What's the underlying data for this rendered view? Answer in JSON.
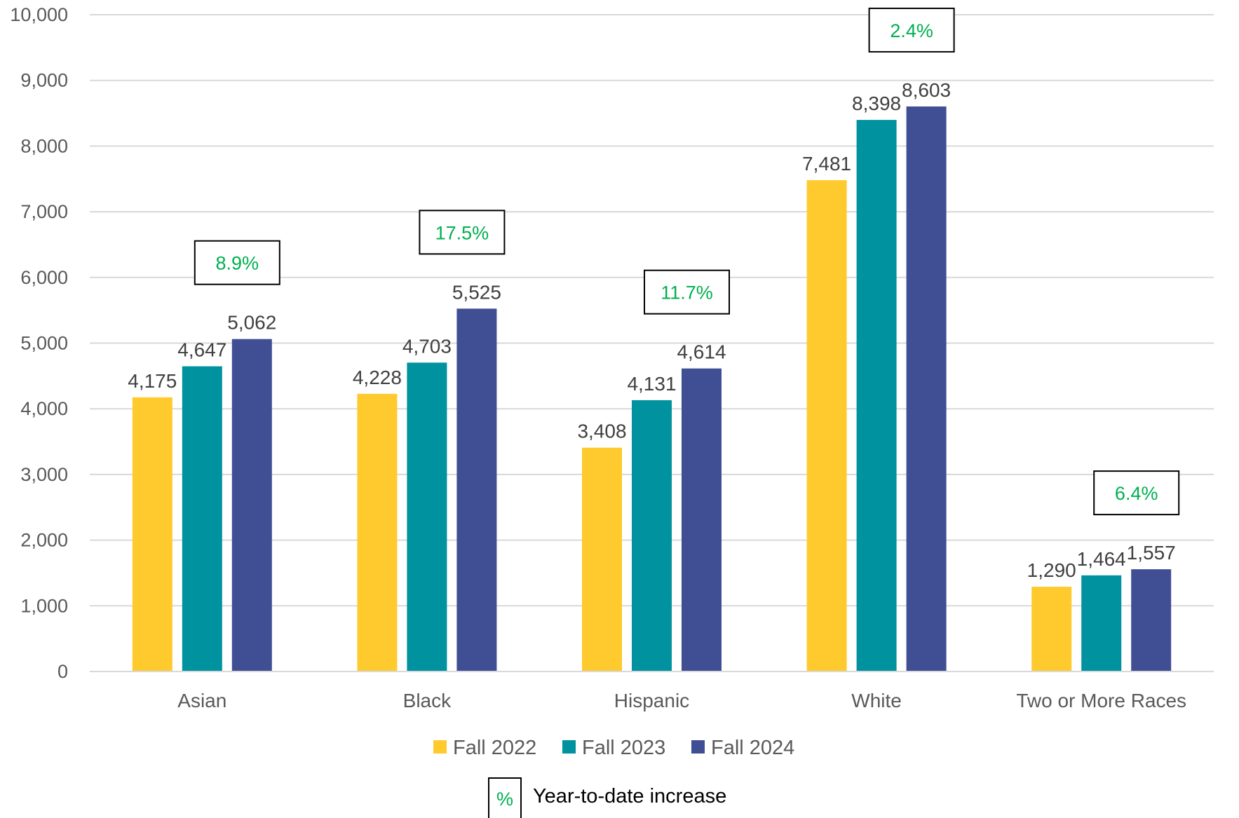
{
  "chart_data": {
    "type": "bar",
    "title": "",
    "xlabel": "",
    "ylabel": "",
    "ylim": [
      0,
      10000
    ],
    "yticks": [
      0,
      1000,
      2000,
      3000,
      4000,
      5000,
      6000,
      7000,
      8000,
      9000,
      10000
    ],
    "ytick_labels": [
      "0",
      "1,000",
      "2,000",
      "3,000",
      "4,000",
      "5,000",
      "6,000",
      "7,000",
      "8,000",
      "9,000",
      "10,000"
    ],
    "grid": true,
    "legend_position": "bottom",
    "categories": [
      "Asian",
      "Black",
      "Hispanic",
      "White",
      "Two or More Races"
    ],
    "series": [
      {
        "name": "Fall 2022",
        "color": "#FFCA2E",
        "values": [
          4175,
          4228,
          3408,
          7481,
          1290
        ],
        "labels": [
          "4,175",
          "4,228",
          "3,408",
          "7,481",
          "1,290"
        ]
      },
      {
        "name": "Fall 2023",
        "color": "#00929F",
        "values": [
          4647,
          4703,
          4131,
          8398,
          1464
        ],
        "labels": [
          "4,647",
          "4,703",
          "4,131",
          "8,398",
          "1,464"
        ]
      },
      {
        "name": "Fall 2024",
        "color": "#404F94",
        "values": [
          5062,
          5525,
          4614,
          8603,
          1557
        ],
        "labels": [
          "5,062",
          "5,525",
          "4,614",
          "8,603",
          "1,557"
        ]
      }
    ],
    "annotations": {
      "color": "#00B050",
      "values": [
        "8.9%",
        "17.5%",
        "11.7%",
        "2.4%",
        "6.4%"
      ]
    },
    "note": {
      "symbol": "%",
      "text": "Year-to-date increase"
    }
  }
}
